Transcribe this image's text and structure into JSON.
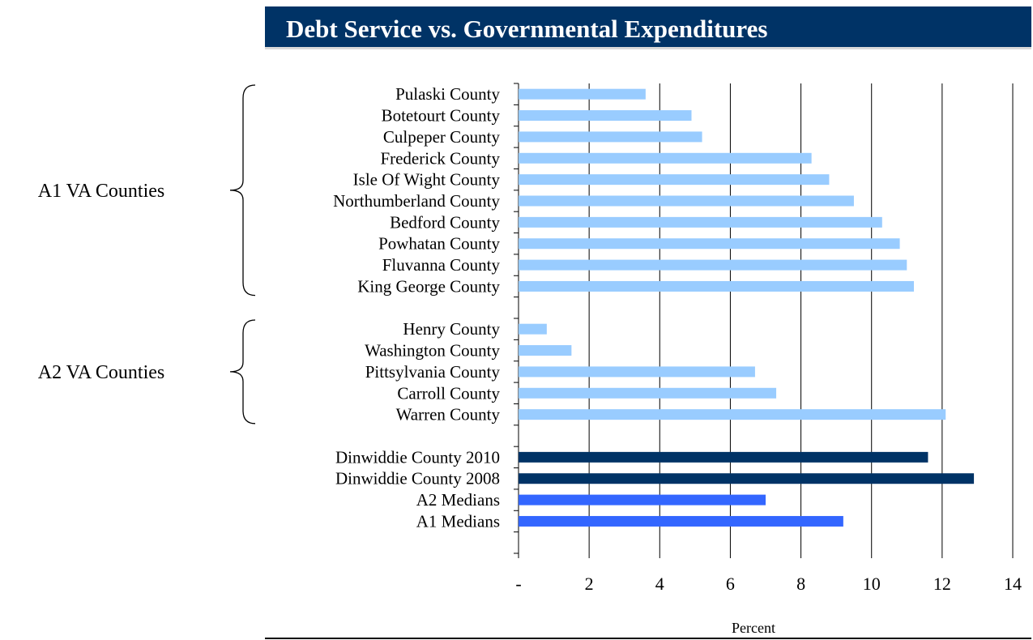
{
  "title": "Debt Service vs. Governmental Expenditures",
  "colors": {
    "title_bg": "#003366",
    "peer": "#99ccff",
    "dinwiddie": "#003366",
    "median": "#3366ff"
  },
  "chart_data": {
    "type": "bar",
    "orientation": "horizontal",
    "title": "Debt Service vs. Governmental Expenditures",
    "xlabel": "Percent",
    "ylabel": "",
    "xlim": [
      0,
      14
    ],
    "x_ticks": [
      "-",
      "2",
      "4",
      "6",
      "8",
      "10",
      "12",
      "14"
    ],
    "grid": "vertical",
    "legend": "none",
    "groups": [
      {
        "label": "A1 VA Counties",
        "categories": [
          "Pulaski County",
          "Botetourt County",
          "Culpeper County",
          "Frederick County",
          "Isle Of Wight County",
          "Northumberland County",
          "Bedford County",
          "Powhatan County",
          "Fluvanna County",
          "King George County"
        ]
      },
      {
        "label": "A2 VA Counties",
        "categories": [
          "Henry County",
          "Washington County",
          "Pittsylvania County",
          "Carroll County",
          "Warren County"
        ]
      }
    ],
    "categories": [
      "Pulaski County",
      "Botetourt County",
      "Culpeper County",
      "Frederick County",
      "Isle Of Wight County",
      "Northumberland County",
      "Bedford County",
      "Powhatan County",
      "Fluvanna County",
      "King George County",
      "",
      "Henry County",
      "Washington County",
      "Pittsylvania County",
      "Carroll County",
      "Warren County",
      "",
      "Dinwiddie County 2010",
      "Dinwiddie County 2008",
      "A2 Medians",
      "A1 Medians"
    ],
    "values": [
      3.6,
      4.9,
      5.2,
      8.3,
      8.8,
      9.5,
      10.3,
      10.8,
      11.0,
      11.2,
      null,
      0.8,
      1.5,
      6.7,
      7.3,
      12.1,
      null,
      11.6,
      12.9,
      7.0,
      9.2
    ],
    "bar_kind": [
      "peer",
      "peer",
      "peer",
      "peer",
      "peer",
      "peer",
      "peer",
      "peer",
      "peer",
      "peer",
      "",
      "peer",
      "peer",
      "peer",
      "peer",
      "peer",
      "",
      "dinwiddie",
      "dinwiddie",
      "median",
      "median"
    ]
  }
}
